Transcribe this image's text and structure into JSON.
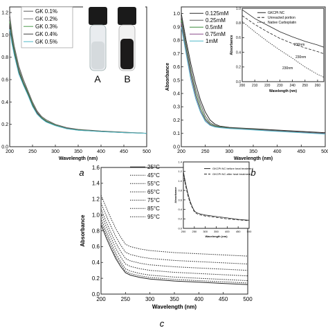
{
  "panels": {
    "a": "a",
    "b": "b",
    "c": "c"
  },
  "vials": {
    "a": "A",
    "b": "B"
  },
  "chart_data": [
    {
      "id": "a",
      "type": "line",
      "xlabel": "Wavelength (nm)",
      "ylabel": "",
      "xlim": [
        200,
        500
      ],
      "ylim": [
        0,
        1.25
      ],
      "xticks": [
        200,
        250,
        300,
        350,
        400,
        450,
        500
      ],
      "yticks": [
        0.0,
        0.2,
        0.4,
        0.6,
        0.8,
        1.0,
        1.2
      ],
      "x": [
        200,
        205,
        210,
        220,
        230,
        240,
        250,
        260,
        270,
        280,
        300,
        325,
        350,
        400,
        450,
        500
      ],
      "series": [
        {
          "name": "GK 0.1%",
          "color": "#5a5a5a",
          "values": [
            1.18,
            1.02,
            0.9,
            0.72,
            0.6,
            0.5,
            0.4,
            0.32,
            0.27,
            0.24,
            0.2,
            0.17,
            0.155,
            0.14,
            0.13,
            0.12
          ]
        },
        {
          "name": "GK 0.2%",
          "color": "#7a7a7a",
          "values": [
            1.15,
            1.0,
            0.88,
            0.7,
            0.58,
            0.49,
            0.39,
            0.31,
            0.26,
            0.23,
            0.195,
            0.165,
            0.15,
            0.138,
            0.128,
            0.12
          ]
        },
        {
          "name": "GK 0.3%",
          "color": "#4a9a4a",
          "values": [
            1.12,
            0.97,
            0.86,
            0.68,
            0.57,
            0.48,
            0.38,
            0.3,
            0.26,
            0.23,
            0.193,
            0.163,
            0.15,
            0.137,
            0.127,
            0.12
          ]
        },
        {
          "name": "GK 0.4%",
          "color": "#3d3d3d",
          "values": [
            1.1,
            0.95,
            0.84,
            0.67,
            0.56,
            0.47,
            0.37,
            0.3,
            0.255,
            0.225,
            0.19,
            0.162,
            0.148,
            0.136,
            0.126,
            0.12
          ]
        },
        {
          "name": "GK 0.5%",
          "color": "#4fb8c8",
          "values": [
            1.05,
            0.92,
            0.82,
            0.65,
            0.55,
            0.46,
            0.36,
            0.29,
            0.25,
            0.22,
            0.188,
            0.16,
            0.147,
            0.135,
            0.126,
            0.12
          ]
        }
      ]
    },
    {
      "id": "b",
      "type": "line",
      "xlabel": "Wavelength (nm)",
      "ylabel": "Absorbance",
      "xlim": [
        200,
        500
      ],
      "ylim": [
        0,
        1.05
      ],
      "xticks": [
        200,
        250,
        300,
        350,
        400,
        450,
        500
      ],
      "yticks": [
        0.0,
        0.1,
        0.2,
        0.3,
        0.4,
        0.5,
        0.6,
        0.7,
        0.8,
        0.9,
        1.0
      ],
      "x": [
        200,
        205,
        210,
        220,
        230,
        240,
        250,
        260,
        270,
        280,
        300,
        325,
        350,
        400,
        450,
        500
      ],
      "series": [
        {
          "name": "0.125mM",
          "color": "#2a2a2a",
          "values": [
            1.0,
            0.9,
            0.8,
            0.62,
            0.47,
            0.35,
            0.26,
            0.2,
            0.17,
            0.155,
            0.145,
            0.14,
            0.135,
            0.125,
            0.115,
            0.105
          ]
        },
        {
          "name": "0.25mM",
          "color": "#5a5a5a",
          "values": [
            0.98,
            0.87,
            0.77,
            0.58,
            0.43,
            0.32,
            0.23,
            0.18,
            0.16,
            0.15,
            0.142,
            0.138,
            0.132,
            0.12,
            0.11,
            0.1
          ]
        },
        {
          "name": "0.5mM",
          "color": "#3a8a3a",
          "values": [
            0.95,
            0.84,
            0.74,
            0.55,
            0.4,
            0.29,
            0.21,
            0.17,
            0.155,
            0.148,
            0.14,
            0.135,
            0.13,
            0.118,
            0.108,
            0.098
          ]
        },
        {
          "name": "0.75mM",
          "color": "#8a4a8a",
          "values": [
            0.93,
            0.82,
            0.72,
            0.53,
            0.38,
            0.27,
            0.2,
            0.165,
            0.15,
            0.145,
            0.138,
            0.133,
            0.128,
            0.117,
            0.107,
            0.097
          ]
        },
        {
          "name": "1mM",
          "color": "#4fb8c8",
          "values": [
            0.9,
            0.8,
            0.7,
            0.5,
            0.36,
            0.26,
            0.19,
            0.16,
            0.148,
            0.143,
            0.136,
            0.131,
            0.126,
            0.115,
            0.105,
            0.095
          ]
        }
      ],
      "inset": {
        "xlabel": "Wavelength (nm)",
        "ylabel": "Absorbance",
        "xlim": [
          200,
          265
        ],
        "ylim": [
          0,
          1.0
        ],
        "xticks": [
          200,
          210,
          220,
          230,
          240,
          250,
          260
        ],
        "yticks": [
          0.0,
          0.2,
          0.4,
          0.6,
          0.8,
          1.0
        ],
        "x": [
          200,
          210,
          220,
          230,
          240,
          250,
          260,
          265
        ],
        "series": [
          {
            "name": "GKCPt NC",
            "style": "solid",
            "values": [
              0.98,
              0.86,
              0.77,
              0.68,
              0.61,
              0.55,
              0.5,
              0.47
            ]
          },
          {
            "name": "Unreacted portion",
            "style": "dashed",
            "values": [
              0.9,
              0.78,
              0.68,
              0.59,
              0.52,
              0.46,
              0.41,
              0.38
            ]
          },
          {
            "name": "Native Carboplatin",
            "style": "dotted",
            "values": [
              0.82,
              0.68,
              0.55,
              0.43,
              0.32,
              0.2,
              0.1,
              0.06
            ]
          }
        ],
        "annotations": [
          "230nm",
          "230nm",
          "230nm"
        ]
      }
    },
    {
      "id": "c",
      "type": "line",
      "xlabel": "Wavelength (nm)",
      "ylabel": "Absorbance",
      "xlim": [
        200,
        500
      ],
      "ylim": [
        0,
        1.6
      ],
      "xticks": [
        200,
        250,
        300,
        350,
        400,
        450,
        500
      ],
      "yticks": [
        0.0,
        0.2,
        0.4,
        0.6,
        0.8,
        1.0,
        1.2,
        1.4,
        1.6
      ],
      "x": [
        200,
        210,
        220,
        230,
        240,
        250,
        260,
        280,
        300,
        350,
        400,
        450,
        500
      ],
      "series": [
        {
          "name": "25°C",
          "style": "solid",
          "values": [
            0.88,
            0.72,
            0.58,
            0.45,
            0.35,
            0.27,
            0.24,
            0.21,
            0.19,
            0.165,
            0.15,
            0.135,
            0.12
          ]
        },
        {
          "name": "45°C",
          "style": "dotted",
          "values": [
            0.92,
            0.76,
            0.62,
            0.48,
            0.38,
            0.29,
            0.26,
            0.23,
            0.21,
            0.185,
            0.17,
            0.155,
            0.14
          ]
        },
        {
          "name": "55°C",
          "style": "dotted",
          "values": [
            0.96,
            0.8,
            0.66,
            0.52,
            0.41,
            0.32,
            0.29,
            0.26,
            0.24,
            0.215,
            0.2,
            0.185,
            0.17
          ]
        },
        {
          "name": "65°C",
          "style": "dotted",
          "values": [
            1.02,
            0.86,
            0.72,
            0.58,
            0.47,
            0.38,
            0.35,
            0.32,
            0.3,
            0.275,
            0.26,
            0.245,
            0.23
          ]
        },
        {
          "name": "75°C",
          "style": "dotted",
          "values": [
            1.08,
            0.92,
            0.78,
            0.65,
            0.54,
            0.45,
            0.42,
            0.39,
            0.37,
            0.345,
            0.33,
            0.315,
            0.3
          ]
        },
        {
          "name": "85°C",
          "style": "dotted",
          "values": [
            1.15,
            1.0,
            0.86,
            0.73,
            0.62,
            0.53,
            0.5,
            0.47,
            0.45,
            0.425,
            0.41,
            0.395,
            0.38
          ]
        },
        {
          "name": "95°C",
          "style": "dotted",
          "values": [
            1.25,
            1.1,
            0.96,
            0.83,
            0.72,
            0.63,
            0.6,
            0.57,
            0.55,
            0.525,
            0.51,
            0.495,
            0.48
          ]
        }
      ],
      "inset": {
        "xlabel": "Wavelength (nm)",
        "ylabel": "Absorbance",
        "xlim": [
          200,
          500
        ],
        "ylim": [
          0,
          1.4
        ],
        "xticks": [
          200,
          250,
          300,
          350,
          400,
          450,
          500
        ],
        "yticks": [
          0.0,
          0.2,
          0.4,
          0.6,
          0.8,
          1.0,
          1.2,
          1.4
        ],
        "x": [
          200,
          210,
          220,
          230,
          240,
          250,
          260,
          280,
          300,
          350,
          400,
          450,
          500
        ],
        "series": [
          {
            "name": "GKCPt NC before heat treatment",
            "style": "solid",
            "values": [
              1.2,
              0.95,
              0.75,
              0.58,
              0.46,
              0.37,
              0.33,
              0.3,
              0.28,
              0.25,
              0.22,
              0.19,
              0.17
            ]
          },
          {
            "name": "GKCPt NC after heat treatment",
            "style": "dashed",
            "values": [
              1.15,
              0.9,
              0.7,
              0.55,
              0.44,
              0.35,
              0.31,
              0.28,
              0.26,
              0.23,
              0.2,
              0.18,
              0.16
            ]
          }
        ]
      }
    }
  ]
}
